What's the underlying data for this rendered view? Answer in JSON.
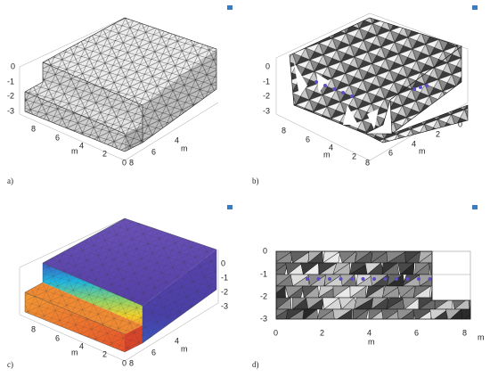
{
  "panels": [
    {
      "label": "a)",
      "z_ticks": [
        "0",
        "-1",
        "-2",
        "-3"
      ],
      "left_ticks": [
        "8",
        "6",
        "4",
        "2",
        "0"
      ],
      "right_ticks": [
        "8",
        "6",
        "4"
      ],
      "axis_labels": [
        "m",
        "m"
      ]
    },
    {
      "label": "b)",
      "z_ticks": [
        "0",
        "-1",
        "-2",
        "-3"
      ],
      "left_ticks": [
        "8",
        "6",
        "4",
        "2"
      ],
      "right_ticks": [
        "8",
        "6",
        "4",
        "2",
        "0"
      ],
      "axis_labels": [
        "m",
        "m"
      ]
    },
    {
      "label": "c)",
      "z_ticks": [
        "0",
        "-1",
        "-2",
        "-3"
      ],
      "left_ticks": [
        "8",
        "6",
        "4",
        "2",
        "0"
      ],
      "right_ticks": [
        "8",
        "6",
        "4"
      ],
      "axis_labels": [
        "m",
        "m"
      ]
    },
    {
      "label": "d)",
      "y_ticks": [
        "0",
        "-1",
        "-2",
        "-3"
      ],
      "x_ticks": [
        "0",
        "2",
        "4",
        "6",
        "8"
      ],
      "axis_labels": [
        "m",
        "m"
      ]
    }
  ]
}
